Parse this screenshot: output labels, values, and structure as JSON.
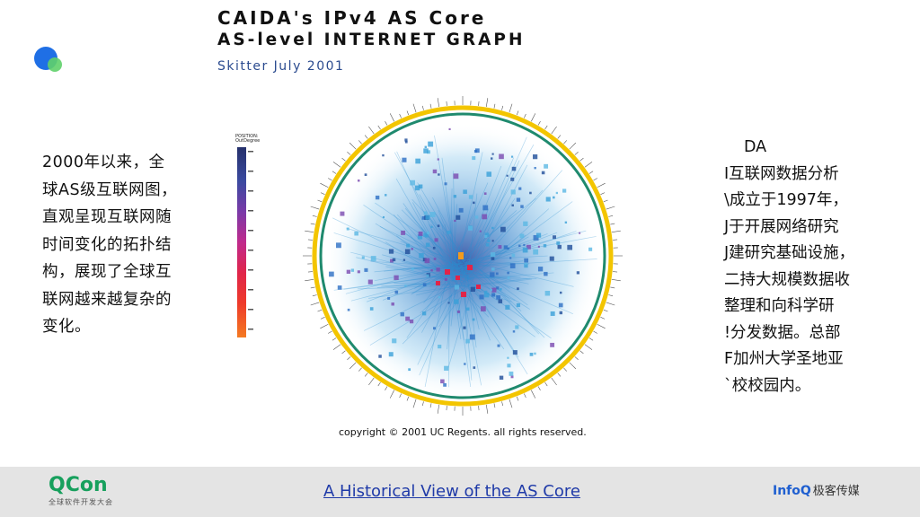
{
  "left_paragraph": {
    "lines": [
      "2000年以来，全",
      "球AS级互联网图，",
      "直观呈现互联网随",
      "时间变化的拓扑结",
      "构，展现了全球互",
      "联网越来越复杂的",
      "变化。"
    ]
  },
  "right_paragraph": {
    "lines": [
      "DA",
      "I互联网数据分析",
      "\\成立于1997年，",
      "J于开展网络研究",
      "J建研究基础设施，",
      "二持大规模数据收",
      "整理和向科学研",
      "!分发数据。总部",
      "F加州大学圣地亚",
      "`校校园内。"
    ]
  },
  "graph": {
    "title_line1": "CAIDA's IPv4 AS Core",
    "title_line2": "AS-level INTERNET GRAPH",
    "subtitle": "Skitter July 2001",
    "legend_title_line1": "POSITION:",
    "legend_title_line2": "OutDegree",
    "copyright": "copyright © 2001 UC Regents. all rights reserved.",
    "colors": {
      "ring_outer": "#f3c500",
      "ring_inner": "#1f8a6e",
      "edges": "#2a8fd0",
      "core": "#e0254a"
    }
  },
  "footer": {
    "brand": "QCon",
    "brand_sub": "全球软件开发大会",
    "link_text": "A Historical View of the AS Core",
    "partner": "InfoQ",
    "partner_cn": "极客传媒"
  }
}
